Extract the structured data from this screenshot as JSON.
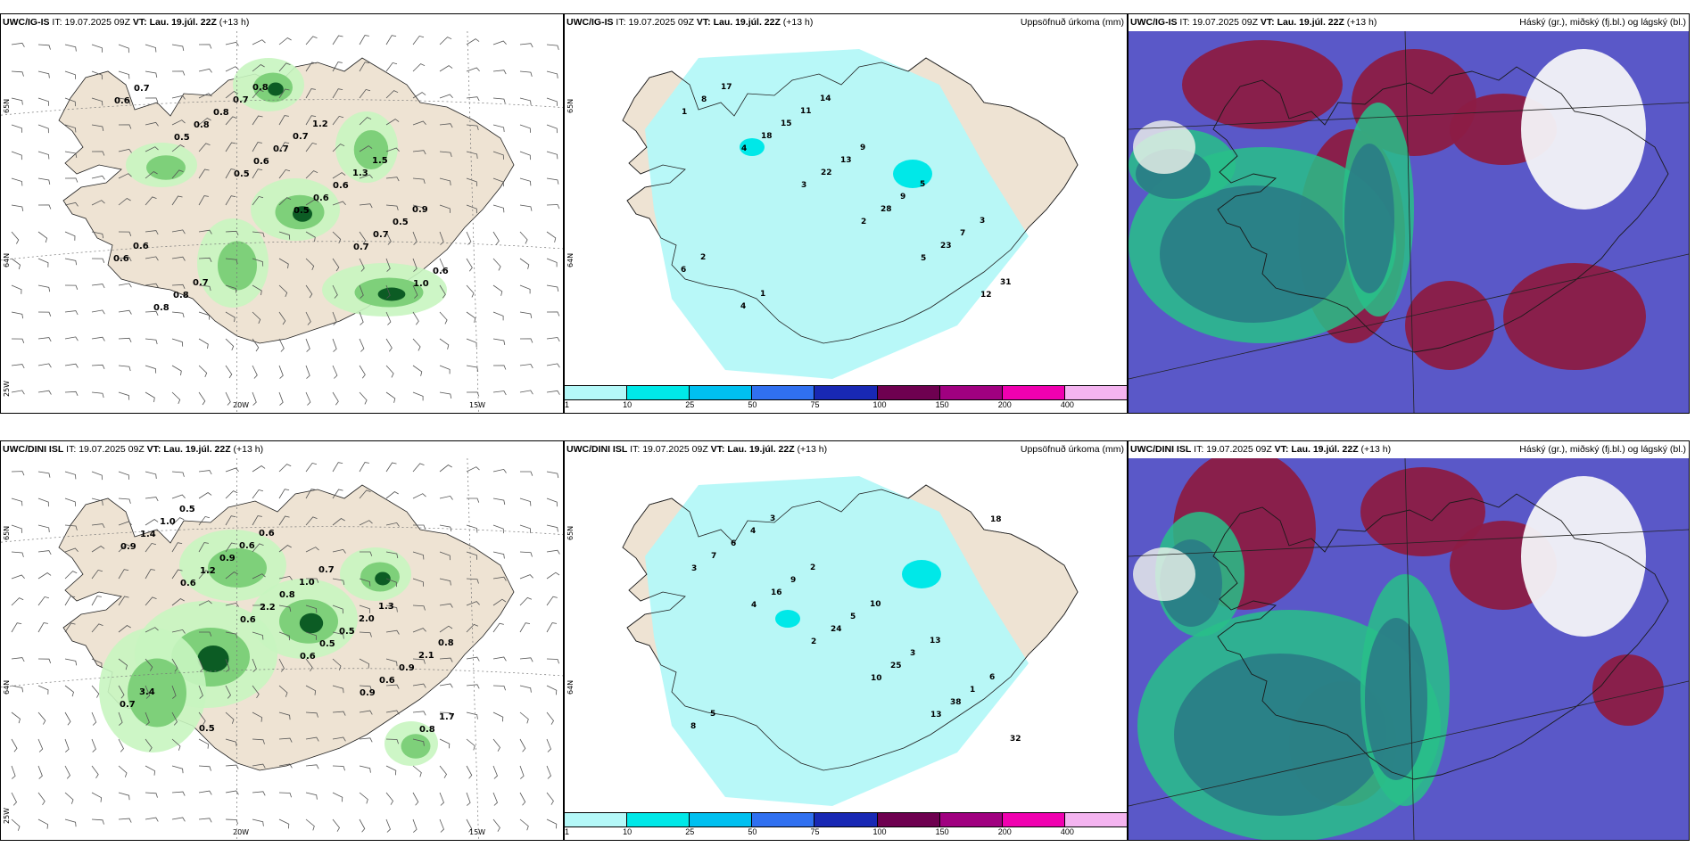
{
  "panels": [
    {
      "id": "p1",
      "model": "UWC/IG-IS",
      "it_label": "IT:",
      "it_value": "19.07.2025 09Z",
      "vt_label": "VT:",
      "vt_value": "Lau. 19.júl. 22Z",
      "lead": "(+13 h)",
      "right_title": "",
      "numbers": [
        "0.6",
        "0.5",
        "0.5",
        "0.5",
        "0.7",
        "1.0",
        "0.7",
        "0.8",
        "0.6",
        "0.6",
        "0.7",
        "0.6",
        "0.8",
        "0.8",
        "0.7",
        "0.6",
        "0.5",
        "0.6",
        "0.8",
        "0.7",
        "0.7",
        "1.3",
        "0.9",
        "0.6",
        "0.7",
        "0.8",
        "1.2",
        "1.5"
      ],
      "lat_labels": [
        "65N",
        "64N"
      ],
      "lon_labels": [
        "20W",
        "15W"
      ],
      "corner_label": "25W"
    },
    {
      "id": "p2",
      "model": "UWC/IG-IS",
      "it_label": "IT:",
      "it_value": "19.07.2025 09Z",
      "vt_label": "VT:",
      "vt_value": "Lau. 19.júl. 22Z",
      "lead": "(+13 h)",
      "right_title": "Uppsöfnuð úrkoma (mm)",
      "numbers": [
        "1",
        "4",
        "3",
        "2",
        "5",
        "12",
        "8",
        "18",
        "22",
        "28",
        "23",
        "31",
        "17",
        "15",
        "13",
        "9",
        "7",
        "6",
        "4",
        "11",
        "9",
        "5",
        "3",
        "2",
        "1",
        "14"
      ],
      "lat_labels": [
        "65N",
        "64N"
      ],
      "lon_labels": [],
      "corner_label": ""
    },
    {
      "id": "p3",
      "model": "UWC/IG-IS",
      "it_label": "IT:",
      "it_value": "19.07.2025 09Z",
      "vt_label": "VT:",
      "vt_value": "Lau. 19.júl. 22Z",
      "lead": "(+13 h)",
      "right_title": "Háský (gr.), miðský (fj.bl.) og lágský (bl.)",
      "numbers": [],
      "lat_labels": [],
      "lon_labels": [],
      "corner_label": ""
    },
    {
      "id": "p4",
      "model": "UWC/DINI ISL",
      "it_label": "IT:",
      "it_value": "19.07.2025 09Z",
      "vt_label": "VT:",
      "vt_value": "Lau. 19.júl. 22Z",
      "lead": "(+13 h)",
      "right_title": "",
      "numbers": [
        "0.9",
        "0.6",
        "0.6",
        "0.6",
        "0.9",
        "0.8",
        "1.4",
        "1.2",
        "2.2",
        "0.5",
        "0.6",
        "1.7",
        "1.0",
        "0.9",
        "0.8",
        "0.5",
        "0.9",
        "0.7",
        "0.5",
        "0.6",
        "1.0",
        "2.0",
        "2.1",
        "3.4",
        "0.5",
        "0.6",
        "0.7",
        "1.3",
        "0.8"
      ],
      "lat_labels": [
        "65N",
        "64N"
      ],
      "lon_labels": [
        "20W",
        "15W"
      ],
      "corner_label": "25W"
    },
    {
      "id": "p5",
      "model": "UWC/DINI ISL",
      "it_label": "IT:",
      "it_value": "19.07.2025 09Z",
      "vt_label": "VT:",
      "vt_value": "Lau. 19.júl. 22Z",
      "lead": "(+13 h)",
      "right_title": "Uppsöfnuð úrkoma (mm)",
      "numbers": [
        "3",
        "4",
        "2",
        "10",
        "13",
        "18",
        "7",
        "16",
        "24",
        "25",
        "38",
        "32",
        "6",
        "9",
        "5",
        "3",
        "1",
        "8",
        "4",
        "2",
        "10",
        "13",
        "6",
        "5",
        "3"
      ],
      "lat_labels": [
        "65N",
        "64N"
      ],
      "lon_labels": [],
      "corner_label": ""
    },
    {
      "id": "p6",
      "model": "UWC/DINI ISL",
      "it_label": "IT:",
      "it_value": "19.07.2025 09Z",
      "vt_label": "VT:",
      "vt_value": "Lau. 19.júl. 22Z",
      "lead": "(+13 h)",
      "right_title": "Háský (gr.), miðský (fj.bl.) og lágský (bl.)",
      "numbers": [],
      "lat_labels": [],
      "lon_labels": [],
      "corner_label": ""
    }
  ],
  "colorbar": {
    "ticks": [
      "1",
      "10",
      "25",
      "50",
      "75",
      "100",
      "150",
      "200",
      "400"
    ],
    "colors": [
      "#b4f8f8",
      "#00e8e8",
      "#00c0f0",
      "#3070f0",
      "#1828b4",
      "#6e0050",
      "#a00080",
      "#f000b0",
      "#f4b4f0"
    ]
  },
  "colors": {
    "land": "#eee3d3",
    "precip_light": "#c8f5c0",
    "precip_mid": "#7ed07a",
    "precip_dark": "#0c5c24",
    "accum": "#b4f8f8",
    "cloud_blue": "#5a58c8",
    "cloud_red": "#8c1c44",
    "cloud_green": "#28c088",
    "cloud_teal": "#2a7c86"
  }
}
